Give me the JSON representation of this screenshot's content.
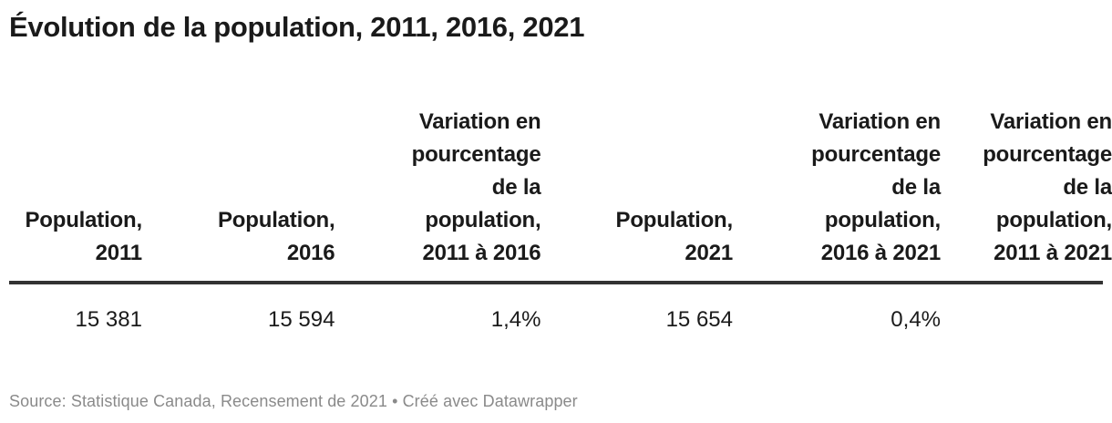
{
  "chart_data": {
    "type": "table",
    "title": "Évolution de la population, 2011, 2016, 2021",
    "columns": [
      "Population, 2011",
      "Population, 2016",
      "Variation en pourcentage de la population, 2011 à 2016",
      "Population, 2021",
      "Variation en pourcentage de la population, 2016 à 2021",
      "Variation en pourcentage de la population, 2011 à 2021"
    ],
    "rows": [
      [
        "15 381",
        "15 594",
        "1,4%",
        "15 654",
        "0,4%",
        ""
      ]
    ],
    "source": "Statistique Canada, Recensement de 2021",
    "credit": "Créé avec Datawrapper",
    "layout_hints": "right-aligned numeric columns, bottom-aligned wrapped headers, thick dark rule under header, sixth column clipped at right edge"
  },
  "footer_text": "Source: Statistique Canada, Recensement de 2021 • Créé avec Datawrapper",
  "colors": {
    "text": "#1a1a1a",
    "rule": "#333333",
    "footer_text": "#8a8a8a",
    "background": "#ffffff"
  }
}
